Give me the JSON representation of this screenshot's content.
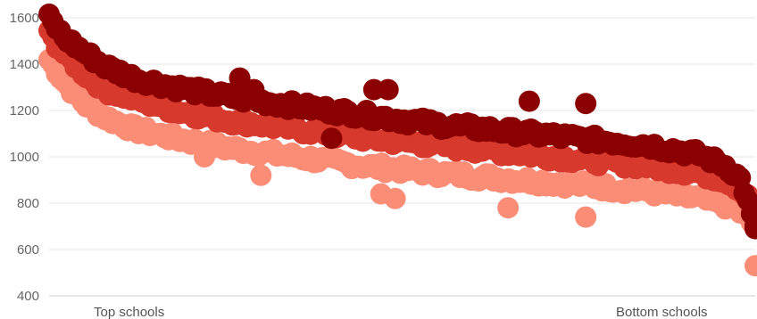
{
  "chart_data": {
    "type": "scatter",
    "ylim": [
      400,
      1600
    ],
    "yticks": [
      400,
      600,
      800,
      1000,
      1200,
      1400,
      1600
    ],
    "grid": true,
    "legend": "none",
    "x_labels": {
      "left": "Top schools",
      "right": "Bottom schools"
    },
    "x_range": [
      0,
      100
    ],
    "series": [
      {
        "color": "#fb8c76",
        "anchors": [
          [
            0,
            1420
          ],
          [
            2,
            1330
          ],
          [
            5,
            1230
          ],
          [
            8,
            1170
          ],
          [
            12,
            1120
          ],
          [
            18,
            1080
          ],
          [
            25,
            1040
          ],
          [
            35,
            1000
          ],
          [
            45,
            960
          ],
          [
            55,
            930
          ],
          [
            65,
            905
          ],
          [
            75,
            880
          ],
          [
            85,
            850
          ],
          [
            92,
            820
          ],
          [
            96,
            790
          ],
          [
            98,
            760
          ],
          [
            100,
            700
          ]
        ],
        "outliers": [
          [
            3,
            1410
          ],
          [
            22,
            1000
          ],
          [
            30,
            920
          ],
          [
            47,
            840
          ],
          [
            49,
            820
          ],
          [
            65,
            780
          ],
          [
            76,
            740
          ],
          [
            100,
            530
          ]
        ]
      },
      {
        "color": "#d73a2c",
        "anchors": [
          [
            0,
            1530
          ],
          [
            2,
            1450
          ],
          [
            5,
            1360
          ],
          [
            8,
            1290
          ],
          [
            12,
            1250
          ],
          [
            18,
            1200
          ],
          [
            25,
            1160
          ],
          [
            35,
            1120
          ],
          [
            45,
            1080
          ],
          [
            55,
            1050
          ],
          [
            65,
            1020
          ],
          [
            75,
            990
          ],
          [
            85,
            960
          ],
          [
            92,
            930
          ],
          [
            96,
            900
          ],
          [
            98,
            860
          ],
          [
            100,
            780
          ]
        ],
        "outliers": []
      },
      {
        "color": "#8b0000",
        "anchors": [
          [
            0,
            1600
          ],
          [
            2,
            1520
          ],
          [
            5,
            1450
          ],
          [
            8,
            1390
          ],
          [
            12,
            1340
          ],
          [
            18,
            1300
          ],
          [
            25,
            1260
          ],
          [
            35,
            1220
          ],
          [
            45,
            1180
          ],
          [
            55,
            1140
          ],
          [
            65,
            1110
          ],
          [
            75,
            1080
          ],
          [
            85,
            1050
          ],
          [
            92,
            1010
          ],
          [
            96,
            960
          ],
          [
            98,
            900
          ],
          [
            100,
            690
          ]
        ],
        "outliers": [
          [
            27,
            1340
          ],
          [
            29,
            1290
          ],
          [
            40,
            1080
          ],
          [
            46,
            1290
          ],
          [
            48,
            1290
          ],
          [
            68,
            1240
          ],
          [
            76,
            1230
          ],
          [
            100,
            690
          ]
        ]
      }
    ]
  }
}
